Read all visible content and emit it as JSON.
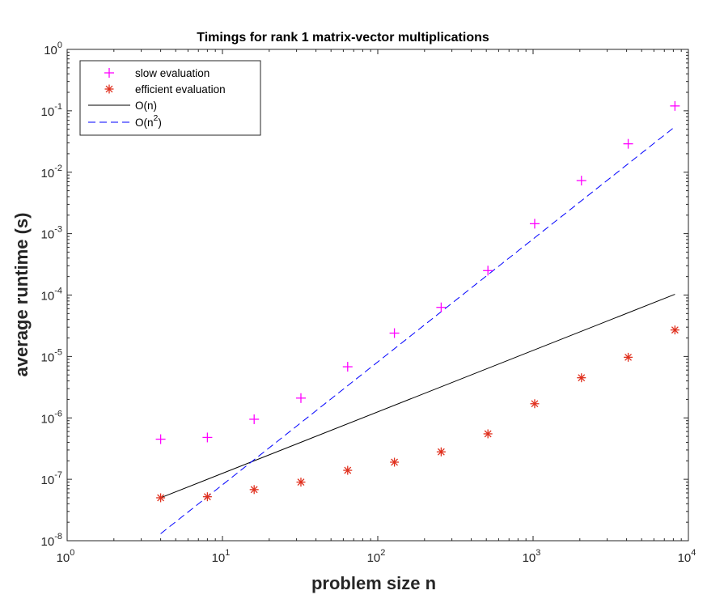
{
  "chart_data": {
    "type": "scatter",
    "title": "Timings for rank 1 matrix-vector multiplications",
    "xlabel": "problem size n",
    "ylabel": "average runtime (s)",
    "xscale": "log",
    "yscale": "log",
    "xlim": [
      1,
      10000
    ],
    "ylim": [
      1e-08,
      1
    ],
    "box": true,
    "grid": false,
    "legend_position": "top-left",
    "x_ticks": [
      {
        "value": 1,
        "base": "10",
        "exp": "0"
      },
      {
        "value": 10,
        "base": "10",
        "exp": "1"
      },
      {
        "value": 100,
        "base": "10",
        "exp": "2"
      },
      {
        "value": 1000,
        "base": "10",
        "exp": "3"
      },
      {
        "value": 10000,
        "base": "10",
        "exp": "4"
      }
    ],
    "y_ticks": [
      {
        "value": 1,
        "base": "10",
        "exp": "0"
      },
      {
        "value": 0.1,
        "base": "10",
        "exp": "-1"
      },
      {
        "value": 0.01,
        "base": "10",
        "exp": "-2"
      },
      {
        "value": 0.001,
        "base": "10",
        "exp": "-3"
      },
      {
        "value": 0.0001,
        "base": "10",
        "exp": "-4"
      },
      {
        "value": 1e-05,
        "base": "10",
        "exp": "-5"
      },
      {
        "value": 1e-06,
        "base": "10",
        "exp": "-6"
      },
      {
        "value": 1e-07,
        "base": "10",
        "exp": "-7"
      },
      {
        "value": 1e-08,
        "base": "10",
        "exp": "-8"
      }
    ],
    "series": [
      {
        "name": "slow evaluation",
        "legend_label": "slow evaluation",
        "marker": "plus",
        "color": "#ff00ff",
        "x": [
          4,
          8,
          16,
          32,
          64,
          128,
          256,
          512,
          1024,
          2048,
          4096,
          8192
        ],
        "y": [
          4.5e-07,
          4.8e-07,
          9.5e-07,
          2.1e-06,
          6.8e-06,
          2.4e-05,
          6.3e-05,
          0.00025,
          0.00145,
          0.0073,
          0.029,
          0.12
        ]
      },
      {
        "name": "efficient evaluation",
        "legend_label": "efficient evaluation",
        "marker": "asterisk",
        "color": "#e0301e",
        "x": [
          4,
          8,
          16,
          32,
          64,
          128,
          256,
          512,
          1024,
          2048,
          4096,
          8192
        ],
        "y": [
          5e-08,
          5.2e-08,
          6.8e-08,
          9e-08,
          1.4e-07,
          1.9e-07,
          2.8e-07,
          5.5e-07,
          1.7e-06,
          4.5e-06,
          9.7e-06,
          2.7e-05
        ]
      },
      {
        "name": "O(n)",
        "legend_label": "O(n)",
        "line": "solid",
        "color": "#000000",
        "x": [
          4,
          8192
        ],
        "y": [
          5e-08,
          0.000103
        ]
      },
      {
        "name": "O(n^2)",
        "legend_label": "O(n",
        "legend_sup": "2",
        "legend_tail": ")",
        "line": "dashed",
        "color": "#0000ff",
        "x": [
          4,
          8192
        ],
        "y": [
          1.3e-08,
          0.055
        ]
      }
    ]
  }
}
